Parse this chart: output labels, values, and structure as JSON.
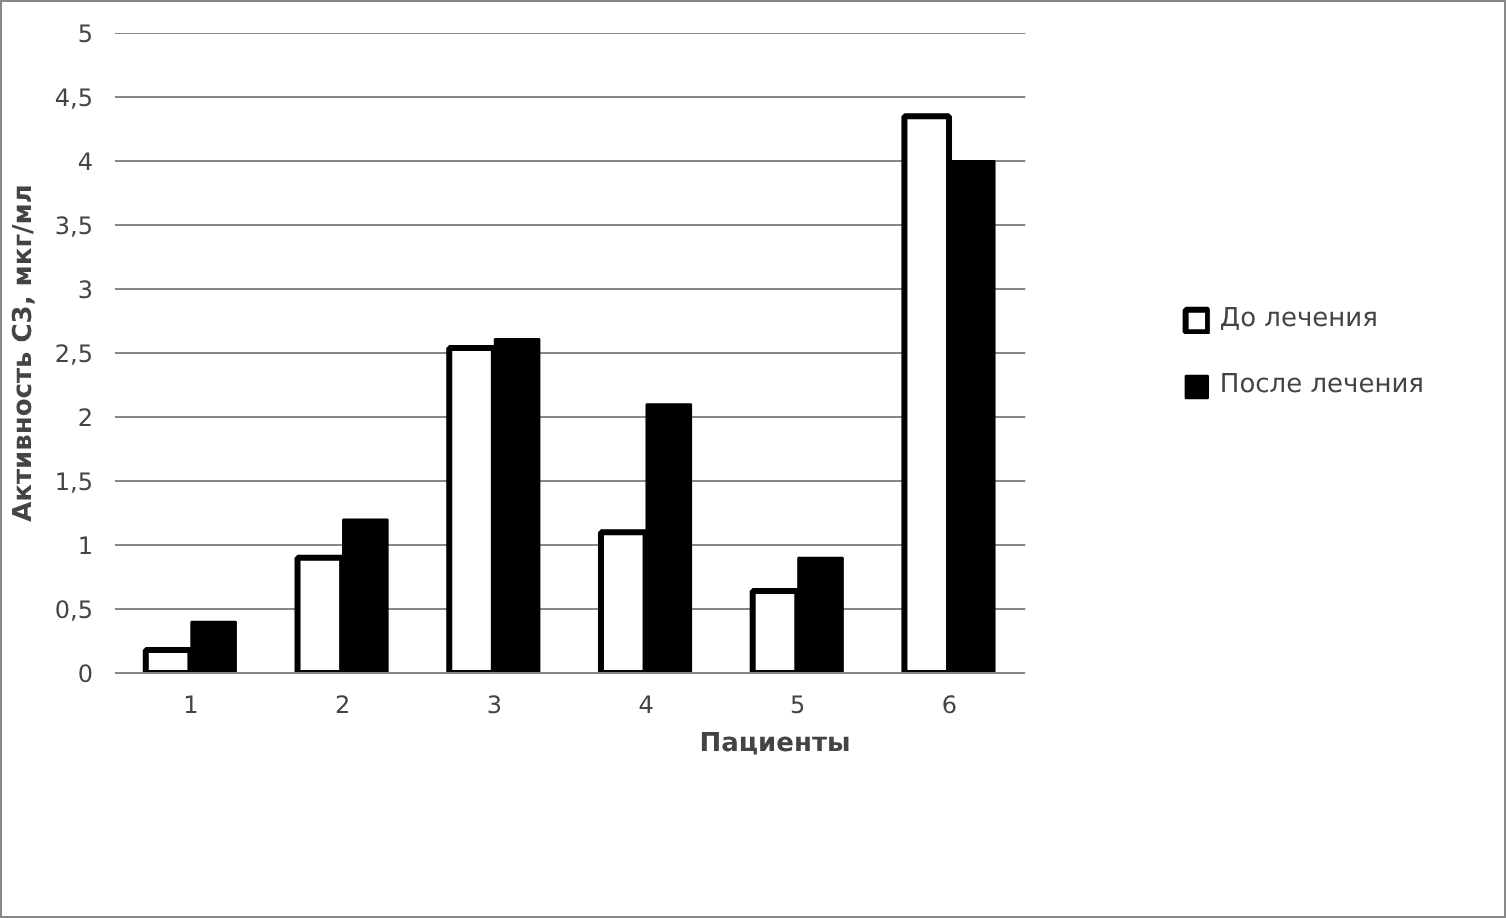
{
  "chart_data": {
    "type": "bar",
    "xlabel": "Пациенты",
    "ylabel": "Активность С3, мкг/мл",
    "categories": [
      "1",
      "2",
      "3",
      "4",
      "5",
      "6"
    ],
    "series": [
      {
        "name": "До лечения",
        "color": "#ffffff",
        "values": [
          0.18,
          0.9,
          2.54,
          1.1,
          0.64,
          4.35
        ]
      },
      {
        "name": "После лечения",
        "color": "#000000",
        "values": [
          0.4,
          1.2,
          2.61,
          2.1,
          0.9,
          4.0
        ]
      }
    ],
    "ylim": [
      0,
      5
    ],
    "yticks": [
      0,
      {
        "value": 0.5,
        "label": "0,5"
      },
      1,
      {
        "value": 1.5,
        "label": "1,5"
      },
      2,
      {
        "value": 2.5,
        "label": "2,5"
      },
      3,
      {
        "value": 3.5,
        "label": "3,5"
      },
      4,
      {
        "value": 4.5,
        "label": "4,5"
      },
      5
    ],
    "grid": "y",
    "legend": "right"
  }
}
